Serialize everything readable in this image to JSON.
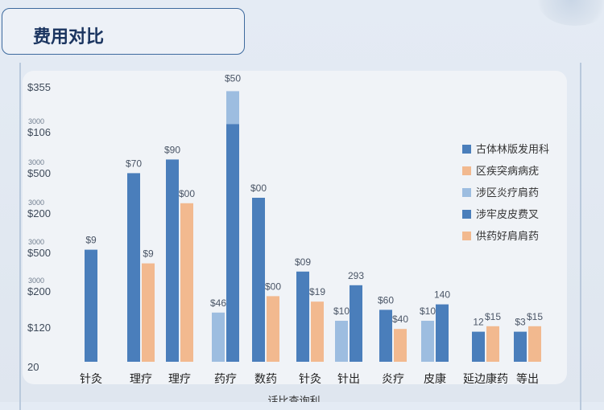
{
  "page": {
    "title": "费用对比"
  },
  "chart_data": {
    "type": "bar",
    "title": "费用对比",
    "xlabel": "",
    "ylabel": "",
    "xlabel_partial": "话比查询利",
    "ylim": [
      0,
      100
    ],
    "y_tick_labels": [
      {
        "major": "$355",
        "minor": ""
      },
      {
        "major": "$106",
        "minor": "3000"
      },
      {
        "major": "$500",
        "minor": "3000"
      },
      {
        "major": "$200",
        "minor": "3000"
      },
      {
        "major": "$500",
        "minor": "3000"
      },
      {
        "major": "$200",
        "minor": "3000"
      },
      {
        "major": "$120",
        "minor": ""
      },
      {
        "major": "20",
        "minor": ""
      }
    ],
    "legend_position": "right",
    "legend": [
      {
        "label": "古体林版发用科",
        "color": "#4a7ebb"
      },
      {
        "label": "区疾突病病疣",
        "color": "#f2b98f"
      },
      {
        "label": "涉区炎疗肩药",
        "color": "#9dbde0"
      },
      {
        "label": "涉牢皮皮费叉",
        "color": "#4a7ebb"
      },
      {
        "label": "供药好肩肩药",
        "color": "#f2b98f"
      }
    ],
    "groups": [
      {
        "category": "针灸",
        "bars": [
          {
            "color": "#4a7ebb",
            "value": 41,
            "label": "$9"
          }
        ]
      },
      {
        "category": "理疗",
        "bars": [
          {
            "color": "#4a7ebb",
            "value": 69,
            "label": "$70"
          },
          {
            "color": "#f2b98f",
            "value": 36,
            "label": "$9"
          }
        ]
      },
      {
        "category": "理疗",
        "bars": [
          {
            "color": "#4a7ebb",
            "value": 74,
            "label": "$90"
          },
          {
            "color": "#f2b98f",
            "value": 58,
            "label": "$00"
          }
        ]
      },
      {
        "category": "药疗",
        "bars": [
          {
            "color": "#9dbde0",
            "value": 18,
            "label": "$46"
          },
          {
            "color": "#4a7ebb",
            "value": 87,
            "label": "$50",
            "cap_color": "#9dbde0",
            "cap_value": 12
          }
        ]
      },
      {
        "category": "数药",
        "bars": [
          {
            "color": "#4a7ebb",
            "value": 60,
            "label": "$00"
          },
          {
            "color": "#f2b98f",
            "value": 24,
            "label": "$00"
          }
        ]
      },
      {
        "category": "针灸",
        "bars": [
          {
            "color": "#4a7ebb",
            "value": 33,
            "label": "$09"
          },
          {
            "color": "#f2b98f",
            "value": 22,
            "label": "$19"
          }
        ]
      },
      {
        "category": "针出",
        "bars": [
          {
            "color": "#9dbde0",
            "value": 15,
            "label": "$10"
          },
          {
            "color": "#4a7ebb",
            "value": 28,
            "label": "293"
          }
        ]
      },
      {
        "category": "炎疗",
        "bars": [
          {
            "color": "#4a7ebb",
            "value": 19,
            "label": "$60"
          },
          {
            "color": "#f2b98f",
            "value": 12,
            "label": "$40"
          }
        ]
      },
      {
        "category": "皮康",
        "bars": [
          {
            "color": "#9dbde0",
            "value": 15,
            "label": "$10"
          },
          {
            "color": "#4a7ebb",
            "value": 21,
            "label": "140"
          }
        ]
      },
      {
        "category": "延边康药",
        "bars": [
          {
            "color": "#4a7ebb",
            "value": 11,
            "label": "12"
          },
          {
            "color": "#f2b98f",
            "value": 13,
            "label": "$15"
          }
        ]
      },
      {
        "category": "等出",
        "bars": [
          {
            "color": "#4a7ebb",
            "value": 11,
            "label": "$3"
          },
          {
            "color": "#f2b98f",
            "value": 13,
            "label": "$15"
          }
        ]
      }
    ]
  }
}
